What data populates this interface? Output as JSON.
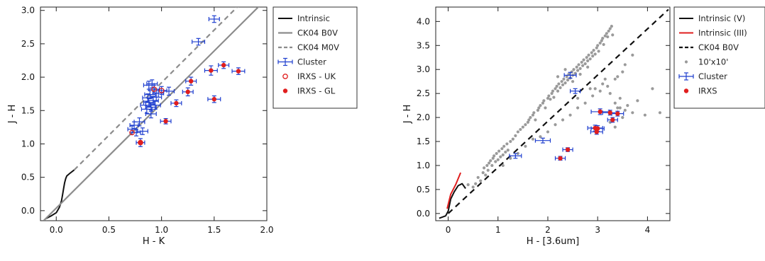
{
  "chart_data": [
    {
      "type": "scatter",
      "xlabel": "H - K",
      "ylabel": "J - H",
      "xlim": [
        -0.15,
        2.0
      ],
      "ylim": [
        -0.15,
        3.05
      ],
      "xticks": [
        "0.0",
        "0.5",
        "1.0",
        "1.5",
        "2.0"
      ],
      "yticks": [
        "0.0",
        "0.5",
        "1.0",
        "1.5",
        "2.0",
        "2.5",
        "3.0"
      ],
      "legend": {
        "position": "outside-right",
        "entries": [
          "Intrinsic",
          "CK04 B0V",
          "CK04 M0V",
          "Cluster",
          "IRXS - UK",
          "IRXS - GL"
        ]
      },
      "series": [
        {
          "name": "Intrinsic",
          "style": "black-line",
          "x": [
            -0.1,
            -0.05,
            0.0,
            0.03,
            0.05,
            0.06,
            0.07,
            0.08,
            0.09,
            0.1,
            0.13,
            0.17
          ],
          "y": [
            -0.12,
            -0.08,
            -0.03,
            0.05,
            0.15,
            0.24,
            0.33,
            0.42,
            0.48,
            0.52,
            0.56,
            0.61
          ]
        },
        {
          "name": "CK04 B0V",
          "style": "gray-solid",
          "x": [
            -0.12,
            1.95
          ],
          "y": [
            -0.15,
            3.1
          ]
        },
        {
          "name": "CK04 M0V",
          "style": "gray-dashed",
          "x": [
            0.17,
            1.75
          ],
          "y": [
            0.61,
            3.1
          ]
        },
        {
          "name": "Cluster",
          "style": "blue-errorbar",
          "x": [
            0.72,
            0.74,
            0.76,
            0.79,
            0.8,
            0.82,
            0.85,
            0.86,
            0.87,
            0.88,
            0.88,
            0.89,
            0.9,
            0.9,
            0.91,
            0.92,
            0.93,
            0.94,
            0.95,
            0.97,
            1.0,
            1.04,
            1.07,
            1.14,
            1.25,
            1.28,
            1.35,
            1.47,
            1.5,
            1.5,
            1.59,
            1.73
          ],
          "y": [
            1.22,
            1.28,
            1.17,
            1.33,
            1.02,
            1.19,
            1.58,
            1.52,
            1.69,
            1.88,
            1.62,
            1.74,
            1.45,
            1.55,
            1.9,
            1.65,
            1.82,
            1.58,
            1.7,
            1.76,
            1.8,
            1.34,
            1.79,
            1.61,
            1.78,
            1.94,
            2.53,
            2.1,
            1.67,
            2.87,
            2.18,
            2.09
          ],
          "xerr": [
            0.04,
            0.04,
            0.04,
            0.05,
            0.04,
            0.05,
            0.05,
            0.05,
            0.05,
            0.05,
            0.05,
            0.05,
            0.05,
            0.05,
            0.05,
            0.05,
            0.05,
            0.05,
            0.05,
            0.05,
            0.05,
            0.05,
            0.05,
            0.05,
            0.05,
            0.05,
            0.06,
            0.06,
            0.06,
            0.05,
            0.05,
            0.06
          ],
          "yerr": [
            0.05,
            0.05,
            0.05,
            0.06,
            0.06,
            0.05,
            0.06,
            0.06,
            0.06,
            0.06,
            0.06,
            0.06,
            0.06,
            0.06,
            0.06,
            0.06,
            0.06,
            0.06,
            0.06,
            0.06,
            0.06,
            0.04,
            0.06,
            0.05,
            0.06,
            0.06,
            0.05,
            0.07,
            0.05,
            0.05,
            0.05,
            0.05
          ]
        },
        {
          "name": "IRXS - UK",
          "style": "red-open-circle",
          "x": [
            0.72,
            0.8,
            0.93,
            1.0
          ],
          "y": [
            1.17,
            1.02,
            1.82,
            1.8
          ]
        },
        {
          "name": "IRXS - GL",
          "style": "red-filled-dot",
          "x": [
            0.8,
            1.04,
            1.14,
            1.25,
            1.28,
            1.47,
            1.5,
            1.59,
            1.73
          ],
          "y": [
            1.02,
            1.34,
            1.61,
            1.78,
            1.94,
            2.1,
            1.67,
            2.18,
            2.09
          ]
        }
      ]
    },
    {
      "type": "scatter",
      "xlabel": "H - [3.6um]",
      "ylabel": "J - H",
      "xlim": [
        -0.25,
        4.45
      ],
      "ylim": [
        -0.15,
        4.3
      ],
      "xticks": [
        "0",
        "1",
        "2",
        "3",
        "4"
      ],
      "yticks": [
        "0.0",
        "0.5",
        "1.0",
        "1.5",
        "2.0",
        "2.5",
        "3.0",
        "3.5",
        "4.0"
      ],
      "legend": {
        "position": "outside-right",
        "entries": [
          "Intrinsic (V)",
          "Intrinsic (III)",
          "CK04 B0V",
          "10'x10'",
          "Cluster",
          "IRXS"
        ]
      },
      "series": [
        {
          "name": "Intrinsic (V)",
          "style": "black-line",
          "x": [
            -0.18,
            -0.05,
            0.0,
            0.05,
            0.12,
            0.2,
            0.28,
            0.35
          ],
          "y": [
            -0.1,
            -0.05,
            0.05,
            0.3,
            0.45,
            0.58,
            0.62,
            0.52
          ]
        },
        {
          "name": "Intrinsic (III)",
          "style": "red-line",
          "x": [
            -0.02,
            0.05,
            0.15,
            0.25
          ],
          "y": [
            0.1,
            0.4,
            0.6,
            0.85
          ]
        },
        {
          "name": "CK04 B0V",
          "style": "black-dashed",
          "x": [
            0.0,
            4.42
          ],
          "y": [
            0.0,
            4.25
          ]
        },
        {
          "name": "10'x10'",
          "style": "gray-dot",
          "x": [
            0.4,
            0.5,
            0.55,
            0.6,
            0.65,
            0.7,
            0.72,
            0.75,
            0.78,
            0.8,
            0.82,
            0.85,
            0.88,
            0.9,
            0.92,
            0.95,
            0.97,
            1.0,
            1.02,
            1.05,
            1.08,
            1.1,
            1.12,
            1.15,
            1.18,
            1.2,
            1.25,
            1.3,
            1.35,
            1.4,
            1.45,
            1.5,
            1.55,
            1.6,
            1.62,
            1.65,
            1.7,
            1.72,
            1.75,
            1.8,
            1.82,
            1.85,
            1.9,
            1.92,
            1.95,
            2.0,
            2.02,
            2.05,
            2.08,
            2.1,
            2.12,
            2.15,
            2.18,
            2.2,
            2.22,
            2.25,
            2.28,
            2.3,
            2.32,
            2.35,
            2.38,
            2.4,
            2.42,
            2.45,
            2.48,
            2.5,
            2.52,
            2.55,
            2.58,
            2.6,
            2.62,
            2.65,
            2.68,
            2.7,
            2.72,
            2.75,
            2.78,
            2.8,
            2.82,
            2.85,
            2.88,
            2.9,
            2.92,
            2.95,
            2.98,
            3.0,
            3.02,
            3.05,
            3.08,
            3.1,
            3.12,
            3.15,
            3.18,
            3.2,
            3.22,
            3.25,
            3.28,
            3.3,
            3.35,
            3.4,
            3.45,
            3.5,
            3.55,
            3.6,
            3.7,
            3.8,
            3.95,
            4.1,
            4.25,
            1.1,
            1.25,
            1.4,
            1.55,
            1.7,
            1.85,
            2.0,
            2.15,
            2.3,
            2.45,
            2.6,
            2.75,
            2.9,
            3.05,
            3.2,
            3.35,
            3.5,
            2.2,
            2.35,
            2.5,
            2.65,
            2.8,
            2.95,
            3.1,
            3.25,
            3.4,
            3.55,
            3.7,
            2.6,
            2.85,
            3.15,
            3.45,
            3.25,
            3.35
          ],
          "y": [
            0.6,
            0.55,
            0.62,
            0.75,
            0.68,
            0.85,
            0.95,
            0.8,
            1.0,
            0.9,
            1.05,
            1.1,
            1.0,
            1.15,
            1.2,
            1.08,
            1.25,
            1.12,
            1.3,
            1.18,
            1.35,
            1.22,
            1.4,
            1.28,
            1.45,
            1.32,
            1.5,
            1.55,
            1.62,
            1.7,
            1.75,
            1.8,
            1.85,
            1.9,
            1.95,
            2.0,
            2.05,
            2.1,
            1.95,
            2.15,
            2.2,
            2.25,
            2.3,
            2.35,
            2.2,
            2.4,
            2.45,
            2.38,
            2.5,
            2.55,
            2.42,
            2.6,
            2.65,
            2.55,
            2.7,
            2.62,
            2.75,
            2.68,
            2.8,
            2.72,
            2.85,
            2.78,
            2.9,
            2.82,
            2.95,
            2.88,
            3.0,
            2.92,
            3.05,
            2.98,
            3.1,
            3.02,
            3.15,
            3.08,
            3.2,
            3.12,
            3.25,
            3.18,
            3.3,
            3.22,
            3.35,
            3.28,
            3.4,
            3.32,
            3.45,
            3.5,
            3.38,
            3.55,
            3.6,
            3.65,
            3.52,
            3.7,
            3.75,
            3.68,
            3.8,
            3.85,
            3.9,
            3.72,
            2.3,
            2.2,
            2.4,
            2.0,
            2.15,
            2.25,
            2.1,
            2.35,
            2.05,
            2.6,
            2.1,
            1.0,
            1.15,
            1.25,
            1.4,
            1.55,
            1.6,
            1.7,
            1.85,
            1.95,
            2.05,
            2.2,
            2.3,
            2.45,
            2.55,
            2.65,
            2.8,
            2.95,
            2.85,
            3.0,
            2.75,
            2.9,
            3.05,
            2.6,
            2.7,
            2.5,
            2.85,
            3.1,
            3.3,
            2.4,
            2.6,
            2.8,
            2.2,
            1.9,
            1.8
          ]
        },
        {
          "name": "Cluster",
          "style": "blue-errorbar",
          "x": [
            1.35,
            1.9,
            2.25,
            2.4,
            2.45,
            2.55,
            2.95,
            2.98,
            3.0,
            3.05,
            3.25,
            3.3,
            3.4
          ],
          "y": [
            1.2,
            1.52,
            1.15,
            1.33,
            2.88,
            2.55,
            1.78,
            1.7,
            1.77,
            2.12,
            2.1,
            1.95,
            2.08
          ],
          "xerr": [
            0.12,
            0.15,
            0.1,
            0.1,
            0.12,
            0.1,
            0.15,
            0.12,
            0.13,
            0.18,
            0.15,
            0.1,
            0.12
          ],
          "yerr": [
            0.05,
            0.05,
            0.04,
            0.04,
            0.06,
            0.05,
            0.06,
            0.05,
            0.06,
            0.06,
            0.05,
            0.05,
            0.05
          ]
        },
        {
          "name": "IRXS",
          "style": "red-filled-dot",
          "x": [
            2.25,
            2.4,
            2.95,
            2.98,
            3.0,
            3.05,
            3.25,
            3.3,
            3.4
          ],
          "y": [
            1.15,
            1.33,
            1.78,
            1.7,
            1.77,
            2.12,
            2.1,
            1.95,
            2.08
          ]
        }
      ]
    }
  ]
}
